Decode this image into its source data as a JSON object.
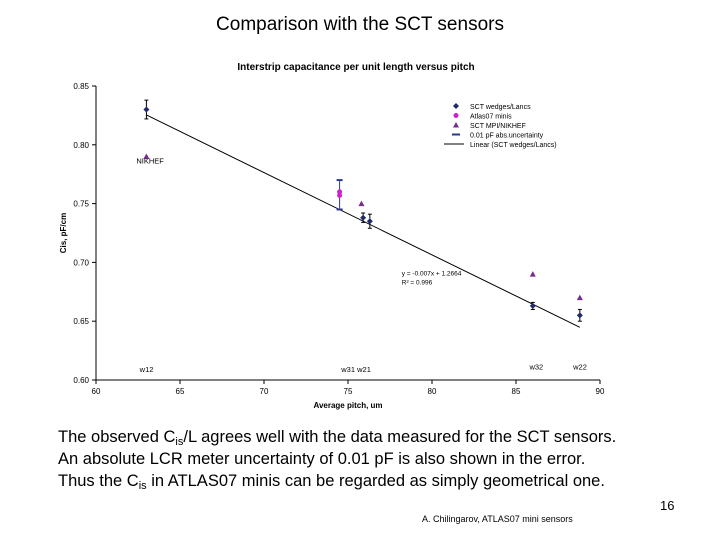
{
  "slide": {
    "title": "Comparison with the SCT sensors",
    "body_lines": [
      {
        "pre": "The observed C",
        "sub": "is",
        "post": "/L agrees well with the data measured for the SCT sensors."
      },
      {
        "pre": "An absolute LCR meter uncertainty of 0.01 pF is also shown in the error.",
        "sub": "",
        "post": ""
      },
      {
        "pre": "Thus the C",
        "sub": "is",
        "post": " in ATLAS07 minis can be regarded as simply geometrical one."
      }
    ],
    "page_number": "16",
    "footer": "A. Chilingarov, ATLAS07 mini sensors"
  },
  "chart_data": {
    "type": "scatter",
    "title": "Interstrip capacitance per unit length versus pitch",
    "xlabel": "Average pitch, um",
    "ylabel": "Cis, pF/cm",
    "xlim": [
      60,
      90
    ],
    "ylim": [
      0.6,
      0.85
    ],
    "x_ticks": [
      "60",
      "65",
      "70",
      "75",
      "80",
      "85",
      "90"
    ],
    "y_ticks": [
      "0.60",
      "0.65",
      "0.70",
      "0.75",
      "0.80",
      "0.85"
    ],
    "legend_position": "top-right",
    "series": [
      {
        "name": "SCT wedges/Lancs",
        "marker": "diamond",
        "color": "#1f2a6b",
        "points": [
          [
            63.0,
            0.83
          ],
          [
            75.9,
            0.738
          ],
          [
            76.3,
            0.735
          ],
          [
            86.0,
            0.663
          ],
          [
            88.8,
            0.655
          ]
        ]
      },
      {
        "name": "Atlas07 minis",
        "marker": "circle",
        "color": "#d020d0",
        "points": [
          [
            74.5,
            0.757
          ],
          [
            74.5,
            0.76
          ]
        ]
      },
      {
        "name": "SCT MPI/NIKHEF",
        "marker": "triangle",
        "color": "#7a2a8c",
        "points": [
          [
            63.0,
            0.79
          ],
          [
            75.8,
            0.75
          ],
          [
            86.0,
            0.69
          ],
          [
            88.8,
            0.67
          ]
        ]
      }
    ],
    "error_bars": [
      {
        "x": 63.0,
        "y": 0.83,
        "err": 0.008
      },
      {
        "x": 75.9,
        "y": 0.738,
        "err": 0.004
      },
      {
        "x": 76.3,
        "y": 0.735,
        "err": 0.006
      },
      {
        "x": 86.0,
        "y": 0.663,
        "err": 0.003
      },
      {
        "x": 88.8,
        "y": 0.655,
        "err": 0.005
      }
    ],
    "uncertainty": {
      "name": "0.01 pF abs.uncertainty",
      "color": "#2b3a8c",
      "x": 74.5,
      "ymin": 0.745,
      "ymax": 0.77
    },
    "fit": {
      "name": "Linear (SCT wedges/Lancs)",
      "slope": -0.007,
      "intercept": 1.2664,
      "x_range": [
        63.0,
        88.8
      ],
      "equation": "y = -0.007x + 1.2664",
      "r2_label": "R² = 0.996",
      "eq_x": 78.2,
      "eq_y": 0.689
    },
    "annotations": [
      {
        "text": "NIKHEF",
        "x": 62.4,
        "y": 0.784
      },
      {
        "text": "w12",
        "x": 62.6,
        "y": 0.607
      },
      {
        "text": "w31 w21",
        "x": 74.6,
        "y": 0.607
      },
      {
        "text": "w32",
        "x": 85.8,
        "y": 0.609
      },
      {
        "text": "w22",
        "x": 88.4,
        "y": 0.609
      }
    ]
  }
}
